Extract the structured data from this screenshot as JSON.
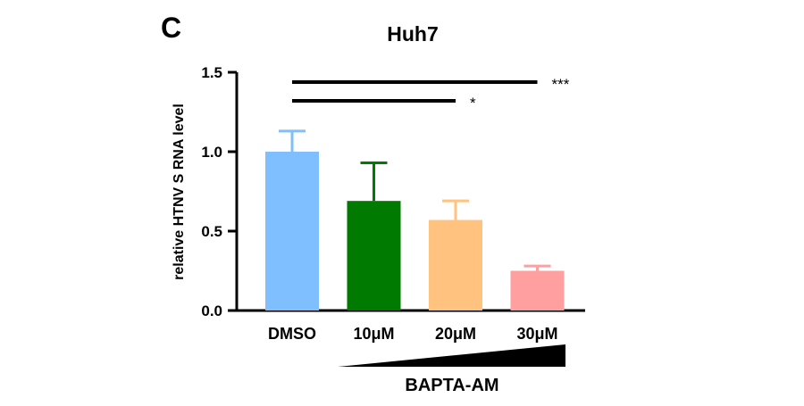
{
  "panel_label": "C",
  "chart_data": {
    "type": "bar",
    "title": "Huh7",
    "ylabel": "relative HTNV S RNA level",
    "xlabel": "",
    "ylim": [
      0,
      1.5
    ],
    "yticks": [
      0.0,
      0.5,
      1.0,
      1.5
    ],
    "ytick_labels": [
      "0.0",
      "0.5",
      "1.0",
      "1.5"
    ],
    "categories": [
      "DMSO",
      "10μM",
      "20μM",
      "30μM"
    ],
    "values": [
      1.0,
      0.69,
      0.57,
      0.25
    ],
    "error_upper": [
      0.13,
      0.24,
      0.12,
      0.03
    ],
    "colors": [
      "#7fbfff",
      "#007a00",
      "#ffc27f",
      "#ff9f9f"
    ],
    "grid": false,
    "treatment": {
      "label": "BAPTA-AM",
      "gradient": "increasing concentration"
    },
    "significance": [
      {
        "from": "DMSO",
        "to": "30μM",
        "label": "***"
      },
      {
        "from": "DMSO",
        "to": "20μM",
        "label": "*"
      }
    ]
  }
}
